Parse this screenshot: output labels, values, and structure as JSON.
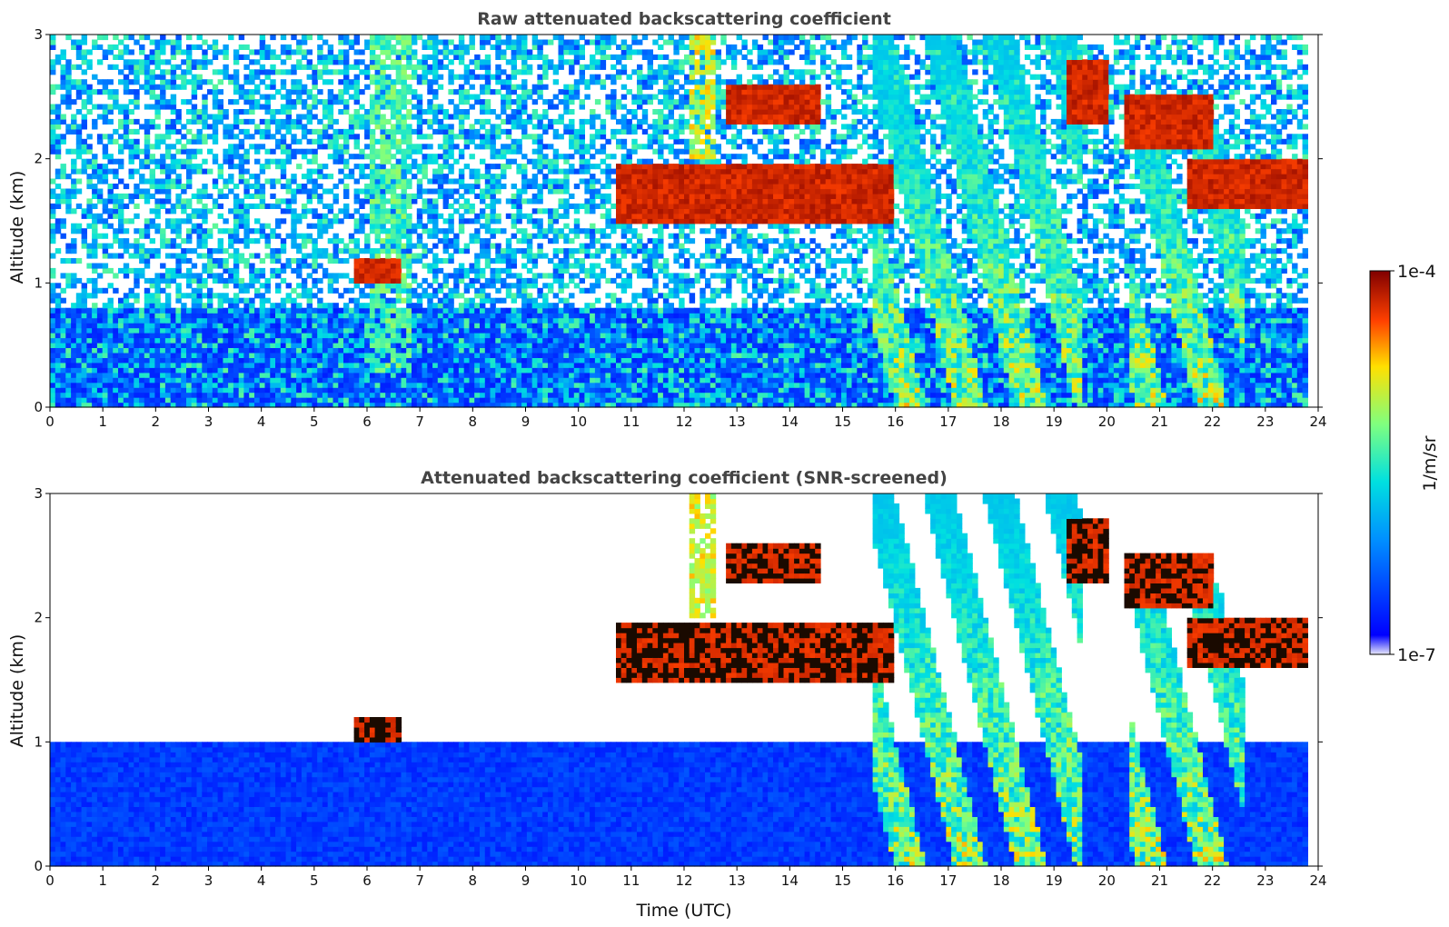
{
  "chart_data": [
    {
      "type": "heatmap",
      "title": "Raw attenuated backscattering coefficient",
      "xlabel": "",
      "ylabel": "Altitude (km)",
      "xlim": [
        0,
        24
      ],
      "ylim": [
        0,
        3
      ],
      "x_ticks": [
        "0",
        "1",
        "2",
        "3",
        "4",
        "5",
        "6",
        "7",
        "8",
        "9",
        "10",
        "11",
        "12",
        "13",
        "14",
        "15",
        "16",
        "17",
        "18",
        "19",
        "20",
        "21",
        "22",
        "23",
        "24"
      ],
      "y_ticks": [
        "0",
        "1",
        "2",
        "3"
      ],
      "features": [
        {
          "kind": "noise-background",
          "t": [
            0,
            23.8
          ],
          "alt": [
            0,
            3
          ]
        },
        {
          "kind": "boundary-layer",
          "t": [
            0,
            23.8
          ],
          "alt": [
            0,
            0.8
          ]
        },
        {
          "kind": "plume",
          "t": [
            6.0,
            6.8
          ],
          "alt": [
            0.3,
            3.0
          ],
          "level": "mid"
        },
        {
          "kind": "dense-layer",
          "t": [
            5.8,
            6.6
          ],
          "alt": [
            1.0,
            1.2
          ],
          "level": "max"
        },
        {
          "kind": "dense-layer",
          "t": [
            10.7,
            16.0
          ],
          "alt": [
            1.5,
            1.95
          ],
          "level": "max"
        },
        {
          "kind": "plume",
          "t": [
            12.1,
            12.6
          ],
          "alt": [
            2.0,
            3.0
          ],
          "level": "high"
        },
        {
          "kind": "dense-layer",
          "t": [
            12.8,
            14.6
          ],
          "alt": [
            2.3,
            2.6
          ],
          "level": "max"
        },
        {
          "kind": "precipitation-streaks",
          "t": [
            15.6,
            19.5
          ],
          "alt": [
            0.0,
            3.0
          ],
          "level": "high"
        },
        {
          "kind": "dense-layer",
          "t": [
            19.2,
            20.0
          ],
          "alt": [
            2.3,
            2.8
          ],
          "level": "max"
        },
        {
          "kind": "dense-layer",
          "t": [
            20.3,
            22.0
          ],
          "alt": [
            2.1,
            2.5
          ],
          "level": "max"
        },
        {
          "kind": "precipitation-streaks",
          "t": [
            20.4,
            22.6
          ],
          "alt": [
            0.0,
            2.3
          ],
          "level": "high"
        },
        {
          "kind": "dense-layer",
          "t": [
            21.5,
            23.8
          ],
          "alt": [
            1.6,
            2.0
          ],
          "level": "max"
        }
      ]
    },
    {
      "type": "heatmap",
      "title": "Attenuated backscattering coefficient (SNR-screened)",
      "xlabel": "Time (UTC)",
      "ylabel": "Altitude (km)",
      "xlim": [
        0,
        24
      ],
      "ylim": [
        0,
        3
      ],
      "x_ticks": [
        "0",
        "1",
        "2",
        "3",
        "4",
        "5",
        "6",
        "7",
        "8",
        "9",
        "10",
        "11",
        "12",
        "13",
        "14",
        "15",
        "16",
        "17",
        "18",
        "19",
        "20",
        "21",
        "22",
        "23",
        "24"
      ],
      "y_ticks": [
        "0",
        "1",
        "2",
        "3"
      ],
      "features": [
        {
          "kind": "boundary-layer",
          "t": [
            0,
            23.8
          ],
          "alt": [
            0,
            1.0
          ]
        },
        {
          "kind": "dense-layer",
          "t": [
            5.8,
            6.6
          ],
          "alt": [
            1.0,
            1.2
          ],
          "level": "max"
        },
        {
          "kind": "dense-layer",
          "t": [
            10.7,
            16.0
          ],
          "alt": [
            1.5,
            1.95
          ],
          "level": "max"
        },
        {
          "kind": "plume",
          "t": [
            12.1,
            12.6
          ],
          "alt": [
            2.0,
            3.0
          ],
          "level": "high"
        },
        {
          "kind": "dense-layer",
          "t": [
            12.8,
            14.6
          ],
          "alt": [
            2.3,
            2.6
          ],
          "level": "max"
        },
        {
          "kind": "precipitation-streaks",
          "t": [
            15.6,
            19.5
          ],
          "alt": [
            0.0,
            3.0
          ],
          "level": "high"
        },
        {
          "kind": "dense-layer",
          "t": [
            19.2,
            20.0
          ],
          "alt": [
            2.3,
            2.8
          ],
          "level": "max"
        },
        {
          "kind": "dense-layer",
          "t": [
            20.3,
            22.0
          ],
          "alt": [
            2.1,
            2.5
          ],
          "level": "max"
        },
        {
          "kind": "precipitation-streaks",
          "t": [
            20.4,
            22.6
          ],
          "alt": [
            0.0,
            2.3
          ],
          "level": "high"
        },
        {
          "kind": "dense-layer",
          "t": [
            21.5,
            23.8
          ],
          "alt": [
            1.6,
            2.0
          ],
          "level": "max"
        }
      ]
    }
  ],
  "colorbar": {
    "label": "1/m/sr",
    "max_label": "1e-4",
    "min_label": "1e-7",
    "scale": "log",
    "range": [
      1e-07,
      0.0001
    ],
    "colormap": "jet"
  }
}
